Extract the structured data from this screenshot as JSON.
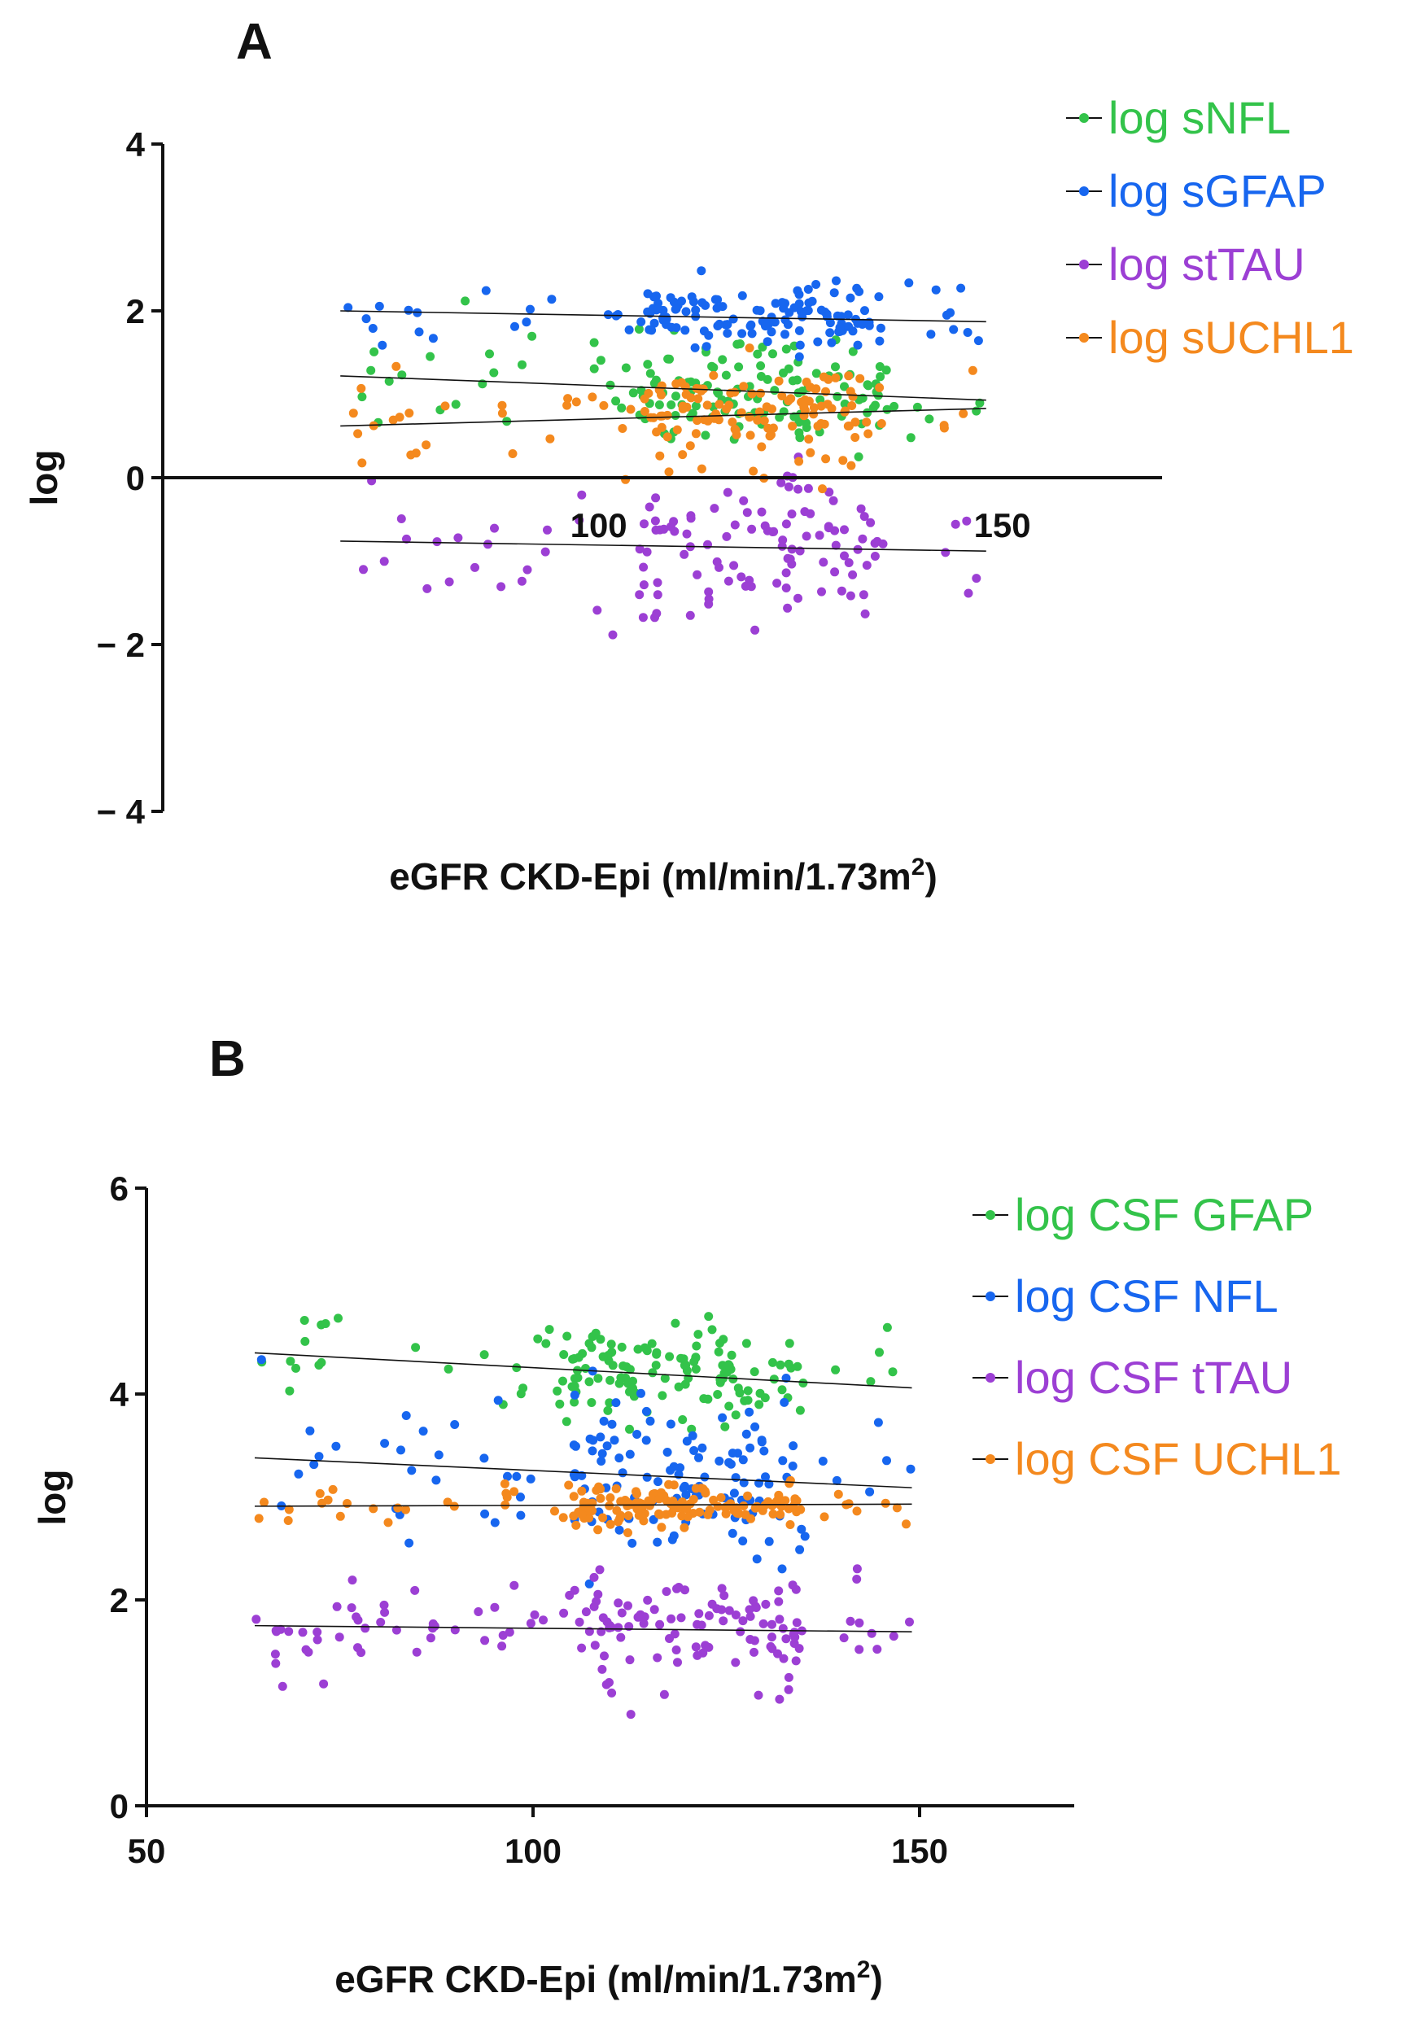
{
  "chart_data": [
    {
      "panel": "A",
      "type": "scatter",
      "title": "",
      "xlabel": "eGFR CKD-Epi (ml/min/1.73m",
      "xlabel_sup": "2",
      "ylabel": "log",
      "xlim": [
        46,
        170
      ],
      "ylim": [
        -4,
        4
      ],
      "xticks": [
        100,
        150
      ],
      "yticks": [
        {
          "value": 4,
          "label": "4"
        },
        {
          "value": 2,
          "label": "2"
        },
        {
          "value": 0,
          "label": "0"
        },
        {
          "value": -2,
          "label": "− 2"
        },
        {
          "value": -4,
          "label": "− 4"
        }
      ],
      "x_axis_at_zero": true,
      "legend_position": "top-right",
      "series": [
        {
          "name": "log sNFL",
          "color": "#33c34a",
          "seed": 11,
          "n": 150,
          "xmin": 68,
          "xmax": 148,
          "trend": [
            [
              68,
              1.22
            ],
            [
              148,
              0.93
            ]
          ],
          "spread": 0.35
        },
        {
          "name": "log sGFAP",
          "color": "#1766ef",
          "seed": 23,
          "n": 150,
          "xmin": 68,
          "xmax": 148,
          "trend": [
            [
              68,
              2.0
            ],
            [
              148,
              1.87
            ]
          ],
          "spread": 0.18
        },
        {
          "name": "log stTAU",
          "color": "#9c3fd4",
          "seed": 37,
          "n": 130,
          "xmin": 68,
          "xmax": 148,
          "trend": [
            [
              68,
              -0.76
            ],
            [
              148,
              -0.88
            ]
          ],
          "spread": 0.45
        },
        {
          "name": "log sUCHL1",
          "color": "#f4891e",
          "seed": 53,
          "n": 150,
          "xmin": 68,
          "xmax": 148,
          "trend": [
            [
              68,
              0.62
            ],
            [
              148,
              0.83
            ]
          ],
          "spread": 0.32
        }
      ]
    },
    {
      "panel": "B",
      "type": "scatter",
      "title": "",
      "xlabel": "eGFR CKD-Epi (ml/min/1.73m",
      "xlabel_sup": "2",
      "ylabel": "log",
      "xlim": [
        50,
        170
      ],
      "ylim": [
        0,
        6
      ],
      "xticks": [
        50,
        100,
        150
      ],
      "yticks": [
        {
          "value": 6,
          "label": "6"
        },
        {
          "value": 4,
          "label": "4"
        },
        {
          "value": 2,
          "label": "2"
        },
        {
          "value": 0,
          "label": "0"
        }
      ],
      "x_axis_at_zero": false,
      "legend_position": "top-right",
      "series": [
        {
          "name": "log CSF GFAP",
          "color": "#33c34a",
          "seed": 71,
          "n": 150,
          "xmin": 64,
          "xmax": 149,
          "trend": [
            [
              64,
              4.4
            ],
            [
              149,
              4.06
            ]
          ],
          "spread": 0.25
        },
        {
          "name": "log CSF NFL",
          "color": "#1766ef",
          "seed": 83,
          "n": 150,
          "xmin": 64,
          "xmax": 149,
          "trend": [
            [
              64,
              3.38
            ],
            [
              149,
              3.09
            ]
          ],
          "spread": 0.4
        },
        {
          "name": "log CSF tTAU",
          "color": "#9c3fd4",
          "seed": 97,
          "n": 160,
          "xmin": 64,
          "xmax": 149,
          "trend": [
            [
              64,
              1.75
            ],
            [
              149,
              1.69
            ]
          ],
          "spread": 0.28
        },
        {
          "name": "log CSF UCHL1",
          "color": "#f4891e",
          "seed": 101,
          "n": 160,
          "xmin": 64,
          "xmax": 149,
          "trend": [
            [
              64,
              2.91
            ],
            [
              149,
              2.93
            ]
          ],
          "spread": 0.1
        }
      ]
    }
  ]
}
